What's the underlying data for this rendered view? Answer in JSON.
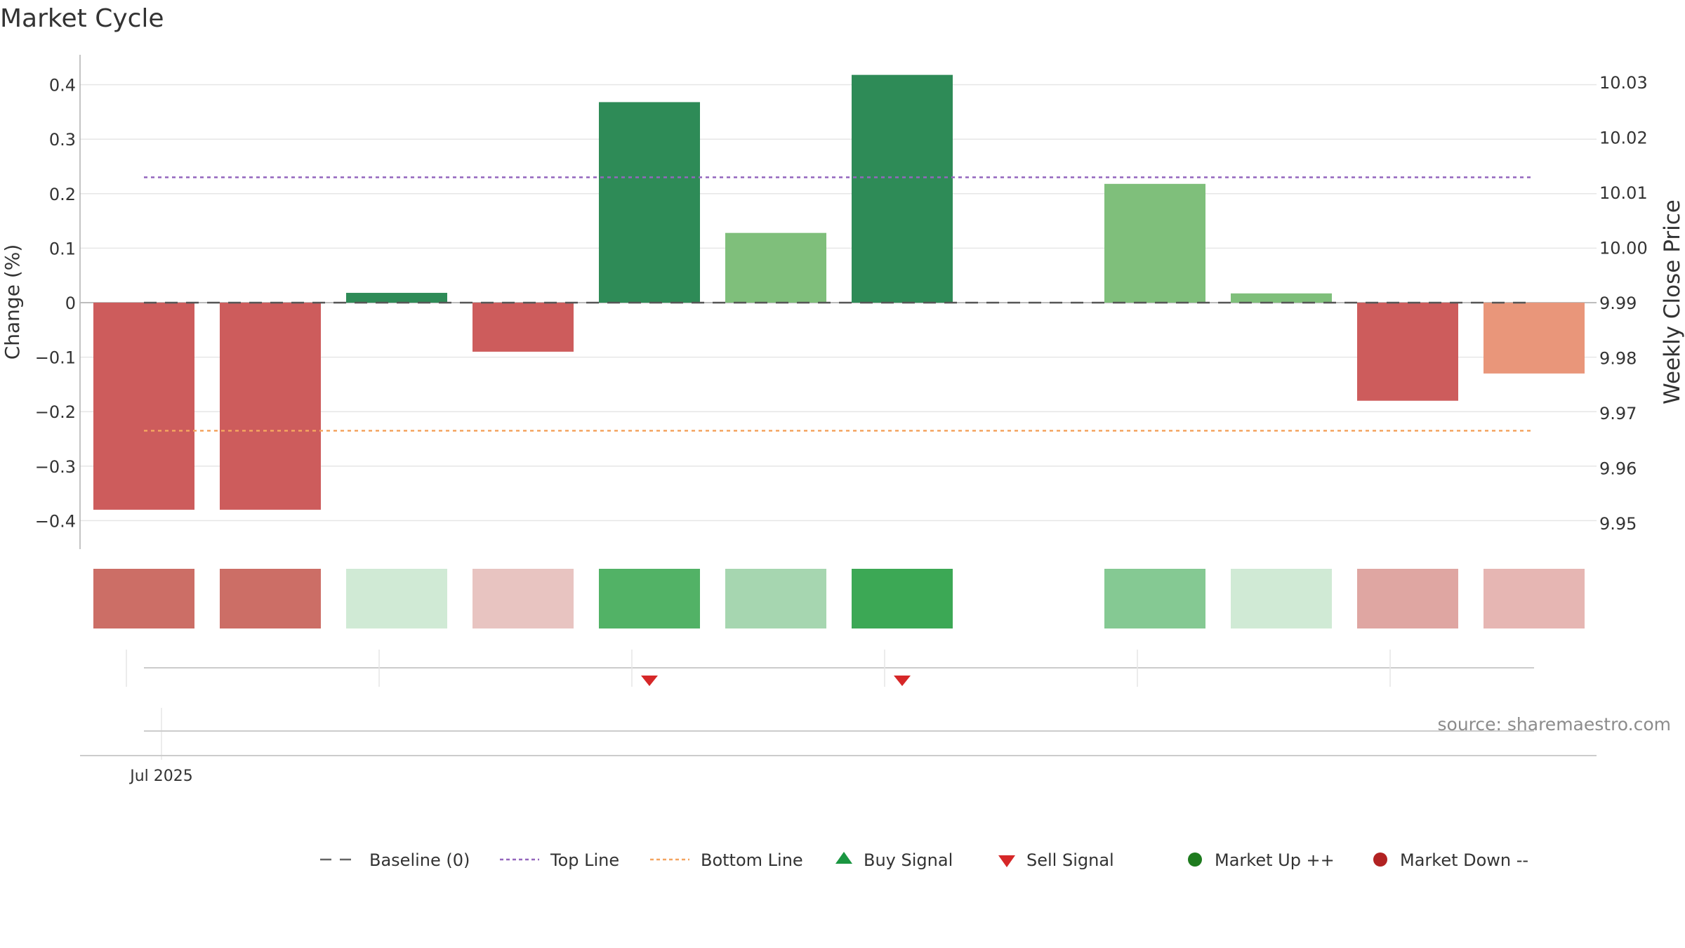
{
  "chart_data": {
    "type": "bar",
    "title": "Market Cycle",
    "ylabel": "Change (%)",
    "y2label": "Weekly Close Price",
    "ylim": [
      -0.45,
      0.45
    ],
    "y2lim": [
      9.9465,
      10.0355
    ],
    "yticks": [
      -0.4,
      -0.3,
      -0.2,
      -0.1,
      0,
      0.1,
      0.2,
      0.3,
      0.4
    ],
    "yticklabels": [
      "−0.4",
      "−0.3",
      "−0.2",
      "−0.1",
      "0",
      "0.1",
      "0.2",
      "0.3",
      "0.4"
    ],
    "y2ticks": [
      9.95,
      9.96,
      9.97,
      9.98,
      9.99,
      10.0,
      10.01,
      10.02,
      10.03
    ],
    "y2ticklabels": [
      "9.95",
      "9.96",
      "9.97",
      "9.98",
      "9.99",
      "10.00",
      "10.01",
      "10.02",
      "10.03"
    ],
    "xticklabel": "Jul 2025",
    "source": "source: sharemaestro.com",
    "top_line": 0.23,
    "bottom_line": -0.235,
    "baseline": 0,
    "bars": [
      {
        "value": -0.38,
        "color": "#cd5c5c",
        "strip": "#cc6e66"
      },
      {
        "value": -0.38,
        "color": "#cd5c5c",
        "strip": "#cc6e66"
      },
      {
        "value": 0.018,
        "color": "#2e8b57",
        "strip": "#d0ead5"
      },
      {
        "value": -0.09,
        "color": "#cd5c5c",
        "strip": "#e8c4c1"
      },
      {
        "value": 0.368,
        "color": "#2e8b57",
        "strip": "#52b266"
      },
      {
        "value": 0.128,
        "color": "#7fbf7b",
        "strip": "#a6d6b0"
      },
      {
        "value": 0.418,
        "color": "#2e8b57",
        "strip": "#3ca855"
      },
      {
        "value": 0,
        "color": "#ffffff",
        "strip": "#ffffff"
      },
      {
        "value": 0.218,
        "color": "#7fbf7b",
        "strip": "#85c993"
      },
      {
        "value": 0.017,
        "color": "#7fbf7b",
        "strip": "#d0ead5"
      },
      {
        "value": -0.18,
        "color": "#cd5c5c",
        "strip": "#dfa6a2"
      },
      {
        "value": -0.13,
        "color": "#e9967a",
        "strip": "#e6b6b3"
      }
    ],
    "sell_signals": [
      4,
      6
    ],
    "legend": [
      {
        "label": "Baseline (0)",
        "kind": "dash",
        "color": "#666666"
      },
      {
        "label": "Top Line",
        "kind": "dotline",
        "color": "#9467bd"
      },
      {
        "label": "Bottom Line",
        "kind": "dotline",
        "color": "#f4a460"
      },
      {
        "label": "Buy Signal",
        "kind": "tri-up",
        "color": "#1a9641"
      },
      {
        "label": "Sell Signal",
        "kind": "tri-down",
        "color": "#d62728"
      },
      {
        "label": "Market Up ++",
        "kind": "dot",
        "color": "#1e7b1e"
      },
      {
        "label": "Market Down --",
        "kind": "dot",
        "color": "#b22222"
      }
    ]
  }
}
